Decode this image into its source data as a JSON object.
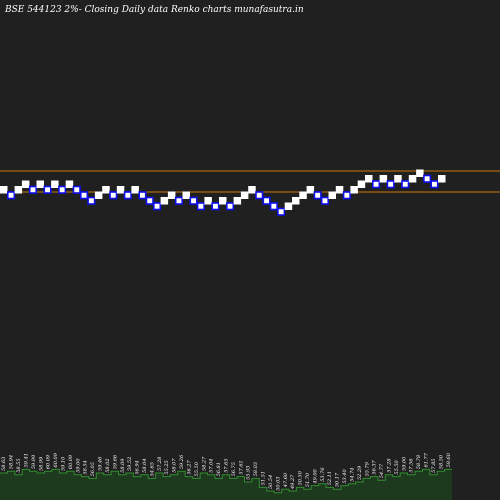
{
  "chart_data": {
    "type": "renko",
    "title": "BSE 544123 2%-  Closing Daily data  Renko  charts munafasutra.in",
    "colors": {
      "background": "#202020",
      "up_brick": "#ffffff",
      "down_brick": "#1010ee",
      "down_brick_fill": "#ffffff",
      "reference_line": "#c87810",
      "volume_bar": "#1e3a1e",
      "volume_top": "#2f8f2f"
    },
    "reference_lines": [
      "upper",
      "lower"
    ],
    "bricks": [
      {
        "dir": "up",
        "level": 0
      },
      {
        "dir": "down",
        "level": -1
      },
      {
        "dir": "up",
        "level": 0
      },
      {
        "dir": "up",
        "level": 1
      },
      {
        "dir": "down",
        "level": 0
      },
      {
        "dir": "up",
        "level": 1
      },
      {
        "dir": "down",
        "level": 0
      },
      {
        "dir": "up",
        "level": 1
      },
      {
        "dir": "down",
        "level": 0
      },
      {
        "dir": "up",
        "level": 1
      },
      {
        "dir": "down",
        "level": 0
      },
      {
        "dir": "down",
        "level": -1
      },
      {
        "dir": "down",
        "level": -2
      },
      {
        "dir": "up",
        "level": -1
      },
      {
        "dir": "up",
        "level": 0
      },
      {
        "dir": "down",
        "level": -1
      },
      {
        "dir": "up",
        "level": 0
      },
      {
        "dir": "down",
        "level": -1
      },
      {
        "dir": "up",
        "level": 0
      },
      {
        "dir": "down",
        "level": -1
      },
      {
        "dir": "down",
        "level": -2
      },
      {
        "dir": "down",
        "level": -3
      },
      {
        "dir": "up",
        "level": -2
      },
      {
        "dir": "up",
        "level": -1
      },
      {
        "dir": "down",
        "level": -2
      },
      {
        "dir": "up",
        "level": -1
      },
      {
        "dir": "down",
        "level": -2
      },
      {
        "dir": "down",
        "level": -3
      },
      {
        "dir": "up",
        "level": -2
      },
      {
        "dir": "down",
        "level": -3
      },
      {
        "dir": "up",
        "level": -2
      },
      {
        "dir": "down",
        "level": -3
      },
      {
        "dir": "up",
        "level": -2
      },
      {
        "dir": "up",
        "level": -1
      },
      {
        "dir": "up",
        "level": 0
      },
      {
        "dir": "down",
        "level": -1
      },
      {
        "dir": "down",
        "level": -2
      },
      {
        "dir": "down",
        "level": -3
      },
      {
        "dir": "down",
        "level": -4
      },
      {
        "dir": "up",
        "level": -3
      },
      {
        "dir": "up",
        "level": -2
      },
      {
        "dir": "up",
        "level": -1
      },
      {
        "dir": "up",
        "level": 0
      },
      {
        "dir": "down",
        "level": -1
      },
      {
        "dir": "down",
        "level": -2
      },
      {
        "dir": "up",
        "level": -1
      },
      {
        "dir": "up",
        "level": 0
      },
      {
        "dir": "down",
        "level": -1
      },
      {
        "dir": "up",
        "level": 0
      },
      {
        "dir": "up",
        "level": 1
      },
      {
        "dir": "up",
        "level": 2
      },
      {
        "dir": "down",
        "level": 1
      },
      {
        "dir": "up",
        "level": 2
      },
      {
        "dir": "down",
        "level": 1
      },
      {
        "dir": "up",
        "level": 2
      },
      {
        "dir": "down",
        "level": 1
      },
      {
        "dir": "up",
        "level": 2
      },
      {
        "dir": "up",
        "level": 3
      },
      {
        "dir": "down",
        "level": 2
      },
      {
        "dir": "down",
        "level": 1
      },
      {
        "dir": "up",
        "level": 2
      }
    ],
    "volume_labels": [
      "58.63",
      "58.94",
      "58.55",
      "59.41",
      "59.99",
      "58.99",
      "60.09",
      "60.09",
      "59.10",
      "60.09",
      "59.00",
      "58.54",
      "56.05",
      "59.46",
      "58.02",
      "59.66",
      "58.09",
      "59.52",
      "56.94",
      "58.04",
      "54.65",
      "57.28",
      "55.25",
      "58.07",
      "59.26",
      "56.27",
      "55.50",
      "58.27",
      "57.04",
      "56.81",
      "57.65",
      "56.75",
      "57.61",
      "55.93",
      "58.03",
      "51.51",
      "50.54",
      "50.03",
      "47.60",
      "49.27",
      "50.50",
      "51.70",
      "49.00",
      "53.76",
      "52.11",
      "50.17",
      "53.40",
      "54.74",
      "52.29",
      "55.79",
      "56.37",
      "54.77",
      "57.28",
      "55.50",
      "59.00",
      "57.56",
      "58.78",
      "61.77",
      "57.85",
      "58.50",
      "59.60"
    ],
    "volume_heights": [
      0.75,
      0.8,
      0.7,
      0.85,
      0.8,
      0.75,
      0.8,
      0.85,
      0.75,
      0.8,
      0.7,
      0.65,
      0.6,
      0.75,
      0.7,
      0.8,
      0.7,
      0.75,
      0.65,
      0.7,
      0.6,
      0.75,
      0.65,
      0.7,
      0.8,
      0.65,
      0.6,
      0.75,
      0.7,
      0.6,
      0.7,
      0.6,
      0.65,
      0.5,
      0.6,
      0.35,
      0.25,
      0.2,
      0.3,
      0.25,
      0.35,
      0.3,
      0.4,
      0.45,
      0.35,
      0.3,
      0.4,
      0.45,
      0.5,
      0.6,
      0.65,
      0.55,
      0.7,
      0.65,
      0.75,
      0.7,
      0.8,
      0.85,
      0.7,
      0.8,
      0.85
    ]
  }
}
